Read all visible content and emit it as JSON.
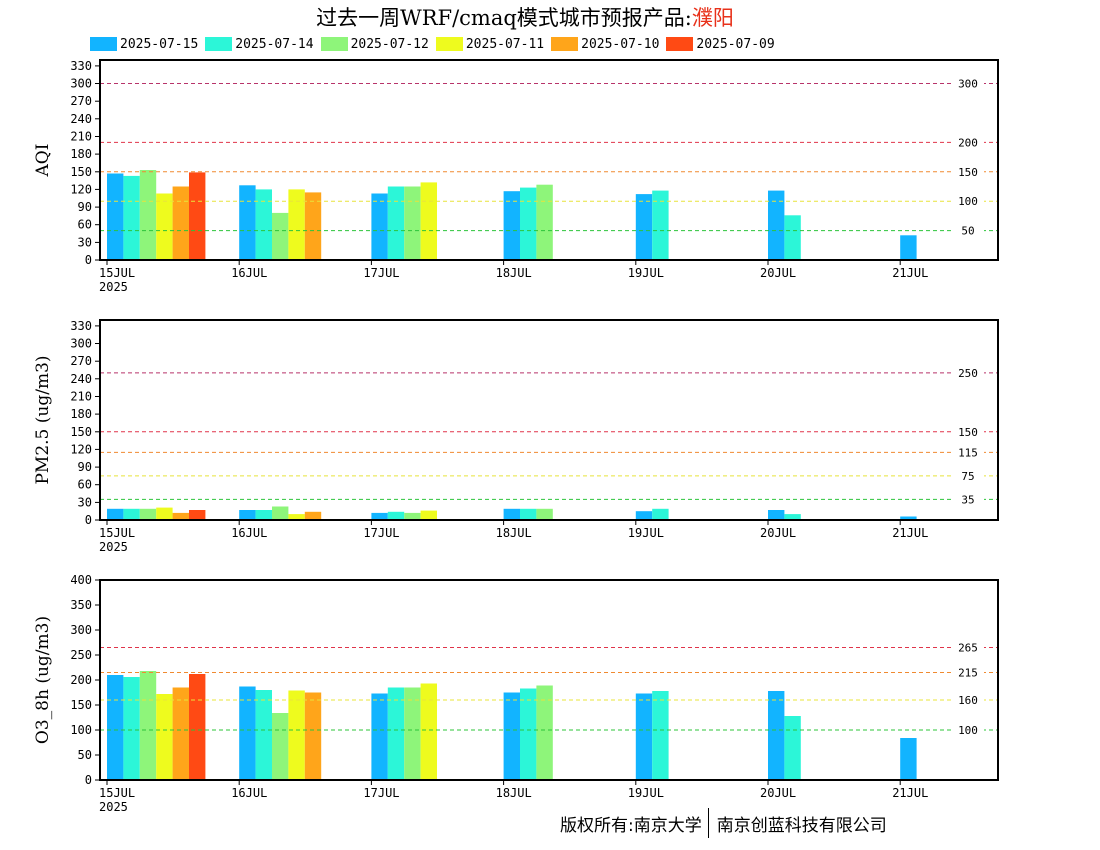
{
  "title": {
    "text": "过去一周WRF/cmaq模式城市预报产品:",
    "city": "濮阳"
  },
  "legend": [
    {
      "label": "2025-07-15",
      "color": "#12b4ff"
    },
    {
      "label": "2025-07-14",
      "color": "#2cf6d8"
    },
    {
      "label": "2025-07-12",
      "color": "#8ef57a"
    },
    {
      "label": "2025-07-11",
      "color": "#eefb1e"
    },
    {
      "label": "2025-07-10",
      "color": "#ffa51a"
    },
    {
      "label": "2025-07-09",
      "color": "#ff4a14"
    }
  ],
  "chart_data": [
    {
      "type": "bar",
      "ylabel": "AQI",
      "ylim": [
        0,
        340
      ],
      "yticks": [
        0,
        30,
        60,
        90,
        120,
        150,
        180,
        210,
        240,
        270,
        300,
        330
      ],
      "xticks": [
        "15JUL",
        "16JUL",
        "17JUL",
        "18JUL",
        "19JUL",
        "20JUL",
        "21JUL"
      ],
      "year_label": "2025",
      "thresholds": [
        {
          "value": 300,
          "label": "300",
          "color": "#b8336a"
        },
        {
          "value": 200,
          "label": "200",
          "color": "#e0344a"
        },
        {
          "value": 150,
          "label": "150",
          "color": "#f08a30"
        },
        {
          "value": 100,
          "label": "100",
          "color": "#e8e43a"
        },
        {
          "value": 50,
          "label": "50",
          "color": "#2cc43a"
        }
      ],
      "groups": [
        {
          "day": 0,
          "bars": [
            {
              "series": "2025-07-15",
              "value": 147
            },
            {
              "series": "2025-07-14",
              "value": 143
            },
            {
              "series": "2025-07-12",
              "value": 153
            },
            {
              "series": "2025-07-11",
              "value": 113
            },
            {
              "series": "2025-07-10",
              "value": 125
            },
            {
              "series": "2025-07-09",
              "value": 149
            }
          ]
        },
        {
          "day": 1,
          "bars": [
            {
              "series": "2025-07-15",
              "value": 127
            },
            {
              "series": "2025-07-14",
              "value": 120
            },
            {
              "series": "2025-07-12",
              "value": 80
            },
            {
              "series": "2025-07-11",
              "value": 120
            },
            {
              "series": "2025-07-10",
              "value": 115
            }
          ]
        },
        {
          "day": 2,
          "bars": [
            {
              "series": "2025-07-15",
              "value": 113
            },
            {
              "series": "2025-07-14",
              "value": 125
            },
            {
              "series": "2025-07-12",
              "value": 125
            },
            {
              "series": "2025-07-11",
              "value": 132
            }
          ]
        },
        {
          "day": 3,
          "bars": [
            {
              "series": "2025-07-15",
              "value": 117
            },
            {
              "series": "2025-07-14",
              "value": 123
            },
            {
              "series": "2025-07-12",
              "value": 128
            }
          ]
        },
        {
          "day": 4,
          "bars": [
            {
              "series": "2025-07-15",
              "value": 112
            },
            {
              "series": "2025-07-14",
              "value": 118
            }
          ]
        },
        {
          "day": 5,
          "bars": [
            {
              "series": "2025-07-15",
              "value": 118
            },
            {
              "series": "2025-07-14",
              "value": 76
            }
          ]
        },
        {
          "day": 6,
          "bars": [
            {
              "series": "2025-07-15",
              "value": 42
            }
          ]
        }
      ]
    },
    {
      "type": "bar",
      "ylabel": "PM2.5 (ug/m3)",
      "ylim": [
        0,
        340
      ],
      "yticks": [
        0,
        30,
        60,
        90,
        120,
        150,
        180,
        210,
        240,
        270,
        300,
        330
      ],
      "xticks": [
        "15JUL",
        "16JUL",
        "17JUL",
        "18JUL",
        "19JUL",
        "20JUL",
        "21JUL"
      ],
      "year_label": "2025",
      "thresholds": [
        {
          "value": 250,
          "label": "250",
          "color": "#b8336a"
        },
        {
          "value": 150,
          "label": "150",
          "color": "#e0344a"
        },
        {
          "value": 115,
          "label": "115",
          "color": "#f08a30"
        },
        {
          "value": 75,
          "label": "75",
          "color": "#e8e43a"
        },
        {
          "value": 35,
          "label": "35",
          "color": "#2cc43a"
        }
      ],
      "groups": [
        {
          "day": 0,
          "bars": [
            {
              "series": "2025-07-15",
              "value": 19
            },
            {
              "series": "2025-07-14",
              "value": 19
            },
            {
              "series": "2025-07-12",
              "value": 19
            },
            {
              "series": "2025-07-11",
              "value": 21
            },
            {
              "series": "2025-07-10",
              "value": 12
            },
            {
              "series": "2025-07-09",
              "value": 17
            }
          ]
        },
        {
          "day": 1,
          "bars": [
            {
              "series": "2025-07-15",
              "value": 17
            },
            {
              "series": "2025-07-14",
              "value": 17
            },
            {
              "series": "2025-07-12",
              "value": 23
            },
            {
              "series": "2025-07-11",
              "value": 10
            },
            {
              "series": "2025-07-10",
              "value": 14
            }
          ]
        },
        {
          "day": 2,
          "bars": [
            {
              "series": "2025-07-15",
              "value": 12
            },
            {
              "series": "2025-07-14",
              "value": 14
            },
            {
              "series": "2025-07-12",
              "value": 12
            },
            {
              "series": "2025-07-11",
              "value": 16
            }
          ]
        },
        {
          "day": 3,
          "bars": [
            {
              "series": "2025-07-15",
              "value": 19
            },
            {
              "series": "2025-07-14",
              "value": 19
            },
            {
              "series": "2025-07-12",
              "value": 19
            }
          ]
        },
        {
          "day": 4,
          "bars": [
            {
              "series": "2025-07-15",
              "value": 15
            },
            {
              "series": "2025-07-14",
              "value": 19
            }
          ]
        },
        {
          "day": 5,
          "bars": [
            {
              "series": "2025-07-15",
              "value": 17
            },
            {
              "series": "2025-07-14",
              "value": 10
            }
          ]
        },
        {
          "day": 6,
          "bars": [
            {
              "series": "2025-07-15",
              "value": 6
            }
          ]
        }
      ]
    },
    {
      "type": "bar",
      "ylabel": "O3_8h (ug/m3)",
      "ylim": [
        0,
        400
      ],
      "yticks": [
        0,
        50,
        100,
        150,
        200,
        250,
        300,
        350,
        400
      ],
      "xticks": [
        "15JUL",
        "16JUL",
        "17JUL",
        "18JUL",
        "19JUL",
        "20JUL",
        "21JUL"
      ],
      "year_label": "2025",
      "thresholds": [
        {
          "value": 265,
          "label": "265",
          "color": "#e0344a"
        },
        {
          "value": 215,
          "label": "215",
          "color": "#f08a30"
        },
        {
          "value": 160,
          "label": "160",
          "color": "#e8e43a"
        },
        {
          "value": 100,
          "label": "100",
          "color": "#2cc43a"
        }
      ],
      "groups": [
        {
          "day": 0,
          "bars": [
            {
              "series": "2025-07-15",
              "value": 210
            },
            {
              "series": "2025-07-14",
              "value": 206
            },
            {
              "series": "2025-07-12",
              "value": 218
            },
            {
              "series": "2025-07-11",
              "value": 172
            },
            {
              "series": "2025-07-10",
              "value": 185
            },
            {
              "series": "2025-07-09",
              "value": 212
            }
          ]
        },
        {
          "day": 1,
          "bars": [
            {
              "series": "2025-07-15",
              "value": 187
            },
            {
              "series": "2025-07-14",
              "value": 180
            },
            {
              "series": "2025-07-12",
              "value": 134
            },
            {
              "series": "2025-07-11",
              "value": 179
            },
            {
              "series": "2025-07-10",
              "value": 175
            }
          ]
        },
        {
          "day": 2,
          "bars": [
            {
              "series": "2025-07-15",
              "value": 173
            },
            {
              "series": "2025-07-14",
              "value": 185
            },
            {
              "series": "2025-07-12",
              "value": 185
            },
            {
              "series": "2025-07-11",
              "value": 193
            }
          ]
        },
        {
          "day": 3,
          "bars": [
            {
              "series": "2025-07-15",
              "value": 175
            },
            {
              "series": "2025-07-14",
              "value": 183
            },
            {
              "series": "2025-07-12",
              "value": 189
            }
          ]
        },
        {
          "day": 4,
          "bars": [
            {
              "series": "2025-07-15",
              "value": 173
            },
            {
              "series": "2025-07-14",
              "value": 178
            }
          ]
        },
        {
          "day": 5,
          "bars": [
            {
              "series": "2025-07-15",
              "value": 178
            },
            {
              "series": "2025-07-14",
              "value": 128
            }
          ]
        },
        {
          "day": 6,
          "bars": [
            {
              "series": "2025-07-15",
              "value": 84
            }
          ]
        }
      ]
    }
  ],
  "footer": {
    "left": "版权所有:南京大学",
    "right": "南京创蓝科技有限公司"
  }
}
